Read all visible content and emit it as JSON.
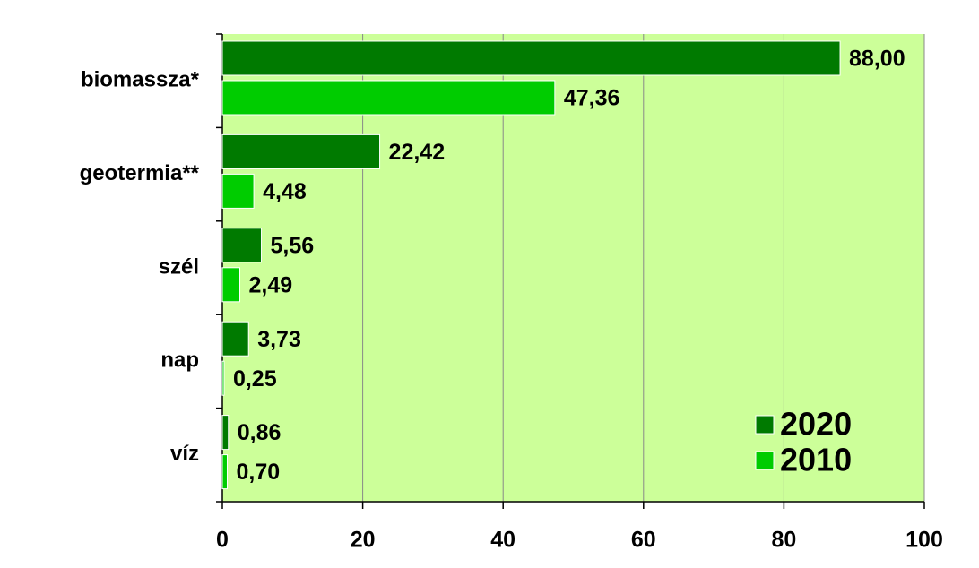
{
  "chart_data": {
    "type": "hbar",
    "categories": [
      "biomassza*",
      "geotermia**",
      "szél",
      "nap",
      "víz"
    ],
    "series": [
      {
        "name": "2020",
        "color": "#007a00",
        "values": [
          88.0,
          22.42,
          5.56,
          3.73,
          0.86
        ],
        "value_labels": [
          "88,00",
          "22,42",
          "5,56",
          "3,73",
          "0,86"
        ]
      },
      {
        "name": "2010",
        "color": "#00cc00",
        "values": [
          47.36,
          4.48,
          2.49,
          0.25,
          0.7
        ],
        "value_labels": [
          "47,36",
          "4,48",
          "2,49",
          "0,25",
          "0,70"
        ]
      }
    ],
    "xlim": [
      0,
      100
    ],
    "xticks": [
      0,
      20,
      40,
      60,
      80,
      100
    ],
    "grid": true,
    "legend": "lower right",
    "background": "#ccff99"
  }
}
